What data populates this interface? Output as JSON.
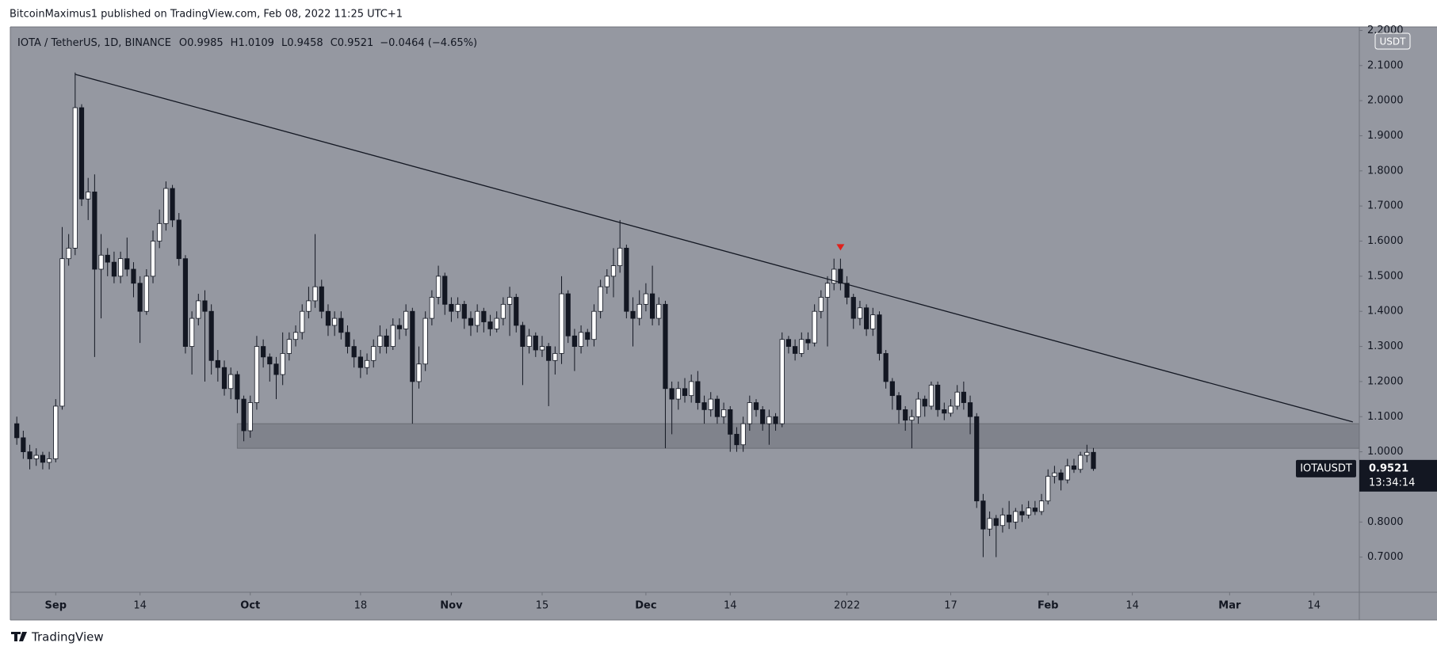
{
  "header": {
    "publisher": "BitcoinMaximus1 published on TradingView.com, Feb 08, 2022 11:25 UTC+1"
  },
  "footer": {
    "brand": "TradingView"
  },
  "chart_data": {
    "type": "candlestick",
    "title": "IOTA / TetherUS, 1D, BINANCE",
    "ohlc_letters": [
      "O",
      "H",
      "L",
      "C"
    ],
    "change": "−0.0464 (−4.65%)",
    "symbol": "IOTAUSDT",
    "currency": "USDT",
    "countdown": "13:34:14",
    "up_color": "#ffffff",
    "down_color": "#131722",
    "background": "#9598a1",
    "xlim": [
      "2021-08-25",
      "2022-03-21"
    ],
    "ylim": [
      0.6,
      2.21
    ],
    "yticks": [
      {
        "value": 0.7,
        "label": "0.7000"
      },
      {
        "value": 0.8,
        "label": "0.8000"
      },
      {
        "value": 1.0,
        "label": "1.0000"
      },
      {
        "value": 1.1,
        "label": "1.1000"
      },
      {
        "value": 1.2,
        "label": "1.2000"
      },
      {
        "value": 1.3,
        "label": "1.3000"
      },
      {
        "value": 1.4,
        "label": "1.4000"
      },
      {
        "value": 1.5,
        "label": "1.5000"
      },
      {
        "value": 1.6,
        "label": "1.6000"
      },
      {
        "value": 1.7,
        "label": "1.7000"
      },
      {
        "value": 1.8,
        "label": "1.8000"
      },
      {
        "value": 1.9,
        "label": "1.9000"
      },
      {
        "value": 2.0,
        "label": "2.0000"
      },
      {
        "value": 2.1,
        "label": "2.1000"
      },
      {
        "value": 2.2,
        "label": "2.2000"
      }
    ],
    "xticks": [
      {
        "value": "2021-09-01",
        "label": "Sep"
      },
      {
        "value": "2021-09-14",
        "label": "14"
      },
      {
        "value": "2021-10-01",
        "label": "Oct"
      },
      {
        "value": "2021-10-18",
        "label": "18"
      },
      {
        "value": "2021-11-01",
        "label": "Nov"
      },
      {
        "value": "2021-11-15",
        "label": "15"
      },
      {
        "value": "2021-12-01",
        "label": "Dec"
      },
      {
        "value": "2021-12-14",
        "label": "14"
      },
      {
        "value": "2022-01-01",
        "label": "2022"
      },
      {
        "value": "2022-01-17",
        "label": "17"
      },
      {
        "value": "2022-02-01",
        "label": "Feb"
      },
      {
        "value": "2022-02-14",
        "label": "14"
      },
      {
        "value": "2022-03-01",
        "label": "Mar"
      },
      {
        "value": "2022-03-14",
        "label": "14"
      }
    ],
    "trendline": {
      "x": [
        "2021-09-04",
        "2022-03-20"
      ],
      "y": [
        2.075,
        1.085
      ],
      "color": "#131722"
    },
    "zone": {
      "x": "2021-09-29",
      "low": 1.01,
      "high": 1.08,
      "color": "#80838c"
    },
    "marker": {
      "x": "2021-12-31",
      "y": 1.58,
      "color": "#e0201b"
    },
    "x": [
      "2021-08-26",
      "2021-08-27",
      "2021-08-28",
      "2021-08-29",
      "2021-08-30",
      "2021-08-31",
      "2021-09-01",
      "2021-09-02",
      "2021-09-03",
      "2021-09-04",
      "2021-09-05",
      "2021-09-06",
      "2021-09-07",
      "2021-09-08",
      "2021-09-09",
      "2021-09-10",
      "2021-09-11",
      "2021-09-12",
      "2021-09-13",
      "2021-09-14",
      "2021-09-15",
      "2021-09-16",
      "2021-09-17",
      "2021-09-18",
      "2021-09-19",
      "2021-09-20",
      "2021-09-21",
      "2021-09-22",
      "2021-09-23",
      "2021-09-24",
      "2021-09-25",
      "2021-09-26",
      "2021-09-27",
      "2021-09-28",
      "2021-09-29",
      "2021-09-30",
      "2021-10-01",
      "2021-10-02",
      "2021-10-03",
      "2021-10-04",
      "2021-10-05",
      "2021-10-06",
      "2021-10-07",
      "2021-10-08",
      "2021-10-09",
      "2021-10-10",
      "2021-10-11",
      "2021-10-12",
      "2021-10-13",
      "2021-10-14",
      "2021-10-15",
      "2021-10-16",
      "2021-10-17",
      "2021-10-18",
      "2021-10-19",
      "2021-10-20",
      "2021-10-21",
      "2021-10-22",
      "2021-10-23",
      "2021-10-24",
      "2021-10-25",
      "2021-10-26",
      "2021-10-27",
      "2021-10-28",
      "2021-10-29",
      "2021-10-30",
      "2021-10-31",
      "2021-11-01",
      "2021-11-02",
      "2021-11-03",
      "2021-11-04",
      "2021-11-05",
      "2021-11-06",
      "2021-11-07",
      "2021-11-08",
      "2021-11-09",
      "2021-11-10",
      "2021-11-11",
      "2021-11-12",
      "2021-11-13",
      "2021-11-14",
      "2021-11-15",
      "2021-11-16",
      "2021-11-17",
      "2021-11-18",
      "2021-11-19",
      "2021-11-20",
      "2021-11-21",
      "2021-11-22",
      "2021-11-23",
      "2021-11-24",
      "2021-11-25",
      "2021-11-26",
      "2021-11-27",
      "2021-11-28",
      "2021-11-29",
      "2021-11-30",
      "2021-12-01",
      "2021-12-02",
      "2021-12-03",
      "2021-12-04",
      "2021-12-05",
      "2021-12-06",
      "2021-12-07",
      "2021-12-08",
      "2021-12-09",
      "2021-12-10",
      "2021-12-11",
      "2021-12-12",
      "2021-12-13",
      "2021-12-14",
      "2021-12-15",
      "2021-12-16",
      "2021-12-17",
      "2021-12-18",
      "2021-12-19",
      "2021-12-20",
      "2021-12-21",
      "2021-12-22",
      "2021-12-23",
      "2021-12-24",
      "2021-12-25",
      "2021-12-26",
      "2021-12-27",
      "2021-12-28",
      "2021-12-29",
      "2021-12-30",
      "2021-12-31",
      "2022-01-01",
      "2022-01-02",
      "2022-01-03",
      "2022-01-04",
      "2022-01-05",
      "2022-01-06",
      "2022-01-07",
      "2022-01-08",
      "2022-01-09",
      "2022-01-10",
      "2022-01-11",
      "2022-01-12",
      "2022-01-13",
      "2022-01-14",
      "2022-01-15",
      "2022-01-16",
      "2022-01-17",
      "2022-01-18",
      "2022-01-19",
      "2022-01-20",
      "2022-01-21",
      "2022-01-22",
      "2022-01-23",
      "2022-01-24",
      "2022-01-25",
      "2022-01-26",
      "2022-01-27",
      "2022-01-28",
      "2022-01-29",
      "2022-01-30",
      "2022-01-31",
      "2022-02-01",
      "2022-02-02",
      "2022-02-03",
      "2022-02-04",
      "2022-02-05",
      "2022-02-06",
      "2022-02-07",
      "2022-02-08"
    ],
    "candles": [
      [
        1.08,
        1.1,
        1.02,
        1.04
      ],
      [
        1.04,
        1.06,
        0.98,
        1.0
      ],
      [
        1.0,
        1.02,
        0.95,
        0.98
      ],
      [
        0.98,
        1.01,
        0.96,
        0.99
      ],
      [
        0.99,
        1.0,
        0.95,
        0.97
      ],
      [
        0.97,
        1.0,
        0.95,
        0.98
      ],
      [
        0.98,
        1.15,
        0.97,
        1.13
      ],
      [
        1.13,
        1.64,
        1.12,
        1.55
      ],
      [
        1.55,
        1.62,
        1.53,
        1.58
      ],
      [
        1.58,
        2.08,
        1.56,
        1.98
      ],
      [
        1.98,
        1.99,
        1.7,
        1.72
      ],
      [
        1.72,
        1.78,
        1.66,
        1.74
      ],
      [
        1.74,
        1.79,
        1.27,
        1.52
      ],
      [
        1.52,
        1.62,
        1.38,
        1.56
      ],
      [
        1.56,
        1.58,
        1.5,
        1.54
      ],
      [
        1.54,
        1.57,
        1.48,
        1.5
      ],
      [
        1.5,
        1.57,
        1.48,
        1.55
      ],
      [
        1.55,
        1.61,
        1.5,
        1.52
      ],
      [
        1.52,
        1.54,
        1.44,
        1.48
      ],
      [
        1.48,
        1.5,
        1.31,
        1.4
      ],
      [
        1.4,
        1.52,
        1.39,
        1.5
      ],
      [
        1.5,
        1.63,
        1.48,
        1.6
      ],
      [
        1.6,
        1.69,
        1.58,
        1.65
      ],
      [
        1.65,
        1.77,
        1.63,
        1.75
      ],
      [
        1.75,
        1.76,
        1.64,
        1.66
      ],
      [
        1.66,
        1.68,
        1.53,
        1.55
      ],
      [
        1.55,
        1.56,
        1.28,
        1.3
      ],
      [
        1.3,
        1.4,
        1.22,
        1.38
      ],
      [
        1.38,
        1.45,
        1.36,
        1.43
      ],
      [
        1.43,
        1.46,
        1.2,
        1.4
      ],
      [
        1.4,
        1.42,
        1.22,
        1.26
      ],
      [
        1.26,
        1.29,
        1.2,
        1.24
      ],
      [
        1.24,
        1.26,
        1.16,
        1.18
      ],
      [
        1.18,
        1.24,
        1.15,
        1.22
      ],
      [
        1.22,
        1.23,
        1.11,
        1.15
      ],
      [
        1.15,
        1.16,
        1.03,
        1.06
      ],
      [
        1.06,
        1.16,
        1.04,
        1.14
      ],
      [
        1.14,
        1.33,
        1.12,
        1.3
      ],
      [
        1.3,
        1.32,
        1.24,
        1.27
      ],
      [
        1.27,
        1.28,
        1.2,
        1.25
      ],
      [
        1.25,
        1.27,
        1.15,
        1.22
      ],
      [
        1.22,
        1.34,
        1.19,
        1.28
      ],
      [
        1.28,
        1.34,
        1.26,
        1.32
      ],
      [
        1.32,
        1.36,
        1.3,
        1.34
      ],
      [
        1.34,
        1.42,
        1.32,
        1.4
      ],
      [
        1.4,
        1.47,
        1.38,
        1.43
      ],
      [
        1.43,
        1.62,
        1.41,
        1.47
      ],
      [
        1.47,
        1.49,
        1.38,
        1.4
      ],
      [
        1.4,
        1.42,
        1.33,
        1.36
      ],
      [
        1.36,
        1.4,
        1.33,
        1.38
      ],
      [
        1.38,
        1.4,
        1.32,
        1.34
      ],
      [
        1.34,
        1.36,
        1.28,
        1.3
      ],
      [
        1.3,
        1.32,
        1.24,
        1.27
      ],
      [
        1.27,
        1.29,
        1.21,
        1.24
      ],
      [
        1.24,
        1.28,
        1.22,
        1.26
      ],
      [
        1.26,
        1.32,
        1.24,
        1.3
      ],
      [
        1.3,
        1.36,
        1.28,
        1.33
      ],
      [
        1.33,
        1.35,
        1.28,
        1.3
      ],
      [
        1.3,
        1.38,
        1.29,
        1.36
      ],
      [
        1.36,
        1.38,
        1.32,
        1.35
      ],
      [
        1.35,
        1.42,
        1.33,
        1.4
      ],
      [
        1.4,
        1.41,
        1.08,
        1.2
      ],
      [
        1.2,
        1.3,
        1.18,
        1.25
      ],
      [
        1.25,
        1.4,
        1.23,
        1.38
      ],
      [
        1.38,
        1.46,
        1.36,
        1.44
      ],
      [
        1.44,
        1.53,
        1.42,
        1.5
      ],
      [
        1.5,
        1.51,
        1.39,
        1.42
      ],
      [
        1.42,
        1.44,
        1.37,
        1.4
      ],
      [
        1.4,
        1.44,
        1.38,
        1.42
      ],
      [
        1.42,
        1.43,
        1.35,
        1.38
      ],
      [
        1.38,
        1.4,
        1.33,
        1.36
      ],
      [
        1.36,
        1.42,
        1.34,
        1.4
      ],
      [
        1.4,
        1.41,
        1.34,
        1.37
      ],
      [
        1.37,
        1.39,
        1.33,
        1.35
      ],
      [
        1.35,
        1.4,
        1.34,
        1.38
      ],
      [
        1.38,
        1.44,
        1.36,
        1.42
      ],
      [
        1.42,
        1.47,
        1.33,
        1.44
      ],
      [
        1.44,
        1.45,
        1.34,
        1.36
      ],
      [
        1.36,
        1.37,
        1.19,
        1.3
      ],
      [
        1.3,
        1.35,
        1.28,
        1.33
      ],
      [
        1.33,
        1.34,
        1.27,
        1.29
      ],
      [
        1.29,
        1.33,
        1.27,
        1.3
      ],
      [
        1.3,
        1.31,
        1.13,
        1.26
      ],
      [
        1.26,
        1.3,
        1.22,
        1.28
      ],
      [
        1.28,
        1.5,
        1.25,
        1.45
      ],
      [
        1.45,
        1.46,
        1.31,
        1.33
      ],
      [
        1.33,
        1.35,
        1.23,
        1.3
      ],
      [
        1.3,
        1.36,
        1.28,
        1.34
      ],
      [
        1.34,
        1.35,
        1.3,
        1.32
      ],
      [
        1.32,
        1.42,
        1.3,
        1.4
      ],
      [
        1.4,
        1.49,
        1.38,
        1.47
      ],
      [
        1.47,
        1.52,
        1.45,
        1.5
      ],
      [
        1.5,
        1.58,
        1.44,
        1.53
      ],
      [
        1.53,
        1.66,
        1.51,
        1.58
      ],
      [
        1.58,
        1.59,
        1.38,
        1.4
      ],
      [
        1.4,
        1.44,
        1.3,
        1.38
      ],
      [
        1.38,
        1.46,
        1.36,
        1.42
      ],
      [
        1.42,
        1.48,
        1.4,
        1.45
      ],
      [
        1.45,
        1.53,
        1.36,
        1.38
      ],
      [
        1.38,
        1.44,
        1.36,
        1.42
      ],
      [
        1.42,
        1.43,
        1.01,
        1.18
      ],
      [
        1.18,
        1.2,
        1.05,
        1.15
      ],
      [
        1.15,
        1.2,
        1.12,
        1.18
      ],
      [
        1.18,
        1.21,
        1.14,
        1.16
      ],
      [
        1.16,
        1.22,
        1.14,
        1.2
      ],
      [
        1.2,
        1.23,
        1.12,
        1.14
      ],
      [
        1.14,
        1.16,
        1.08,
        1.12
      ],
      [
        1.12,
        1.17,
        1.1,
        1.15
      ],
      [
        1.15,
        1.16,
        1.08,
        1.1
      ],
      [
        1.1,
        1.14,
        1.08,
        1.12
      ],
      [
        1.12,
        1.13,
        1.0,
        1.05
      ],
      [
        1.05,
        1.07,
        1.0,
        1.02
      ],
      [
        1.02,
        1.1,
        1.0,
        1.08
      ],
      [
        1.08,
        1.16,
        1.06,
        1.14
      ],
      [
        1.14,
        1.15,
        1.1,
        1.12
      ],
      [
        1.12,
        1.13,
        1.06,
        1.08
      ],
      [
        1.08,
        1.12,
        1.02,
        1.1
      ],
      [
        1.1,
        1.11,
        1.06,
        1.08
      ],
      [
        1.08,
        1.34,
        1.07,
        1.32
      ],
      [
        1.32,
        1.33,
        1.28,
        1.3
      ],
      [
        1.3,
        1.32,
        1.26,
        1.28
      ],
      [
        1.28,
        1.34,
        1.27,
        1.32
      ],
      [
        1.32,
        1.34,
        1.29,
        1.31
      ],
      [
        1.31,
        1.42,
        1.3,
        1.4
      ],
      [
        1.4,
        1.46,
        1.38,
        1.44
      ],
      [
        1.44,
        1.5,
        1.3,
        1.48
      ],
      [
        1.48,
        1.55,
        1.46,
        1.52
      ],
      [
        1.52,
        1.55,
        1.46,
        1.48
      ],
      [
        1.48,
        1.5,
        1.42,
        1.44
      ],
      [
        1.44,
        1.45,
        1.35,
        1.38
      ],
      [
        1.38,
        1.43,
        1.36,
        1.41
      ],
      [
        1.41,
        1.42,
        1.33,
        1.35
      ],
      [
        1.35,
        1.41,
        1.33,
        1.39
      ],
      [
        1.39,
        1.4,
        1.26,
        1.28
      ],
      [
        1.28,
        1.29,
        1.18,
        1.2
      ],
      [
        1.2,
        1.21,
        1.12,
        1.16
      ],
      [
        1.16,
        1.17,
        1.08,
        1.12
      ],
      [
        1.12,
        1.13,
        1.06,
        1.09
      ],
      [
        1.09,
        1.12,
        1.01,
        1.1
      ],
      [
        1.1,
        1.17,
        1.08,
        1.15
      ],
      [
        1.15,
        1.16,
        1.1,
        1.13
      ],
      [
        1.13,
        1.2,
        1.12,
        1.19
      ],
      [
        1.19,
        1.2,
        1.1,
        1.12
      ],
      [
        1.12,
        1.14,
        1.09,
        1.11
      ],
      [
        1.11,
        1.15,
        1.1,
        1.13
      ],
      [
        1.13,
        1.19,
        1.12,
        1.17
      ],
      [
        1.17,
        1.2,
        1.12,
        1.14
      ],
      [
        1.14,
        1.16,
        1.05,
        1.1
      ],
      [
        1.1,
        1.11,
        0.84,
        0.86
      ],
      [
        0.86,
        0.88,
        0.7,
        0.78
      ],
      [
        0.78,
        0.83,
        0.76,
        0.81
      ],
      [
        0.81,
        0.82,
        0.7,
        0.79
      ],
      [
        0.79,
        0.84,
        0.77,
        0.82
      ],
      [
        0.82,
        0.86,
        0.78,
        0.8
      ],
      [
        0.8,
        0.84,
        0.78,
        0.83
      ],
      [
        0.83,
        0.85,
        0.8,
        0.82
      ],
      [
        0.82,
        0.86,
        0.81,
        0.84
      ],
      [
        0.84,
        0.86,
        0.82,
        0.83
      ],
      [
        0.83,
        0.88,
        0.82,
        0.86
      ],
      [
        0.86,
        0.95,
        0.85,
        0.93
      ],
      [
        0.93,
        0.96,
        0.91,
        0.94
      ],
      [
        0.94,
        0.95,
        0.89,
        0.92
      ],
      [
        0.92,
        0.98,
        0.91,
        0.96
      ],
      [
        0.96,
        0.98,
        0.94,
        0.95
      ],
      [
        0.95,
        1.0,
        0.94,
        0.99
      ],
      [
        0.99,
        1.02,
        0.97,
        0.9985
      ],
      [
        0.9985,
        1.0109,
        0.9458,
        0.9521
      ]
    ]
  }
}
